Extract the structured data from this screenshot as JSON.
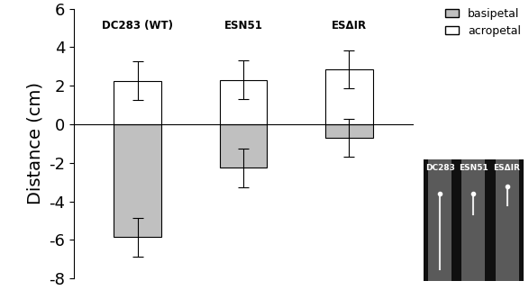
{
  "chart_data": {
    "type": "bar",
    "categories": [
      "DC283 (WT)",
      "ESN51",
      "ESΔIR"
    ],
    "series": [
      {
        "name": "basipetal",
        "color": "#c0c0c0",
        "values": [
          -5.85,
          -2.25,
          -0.7
        ],
        "error": [
          1.0,
          1.0,
          1.0
        ]
      },
      {
        "name": "acropetal",
        "color": "#ffffff",
        "values": [
          2.25,
          2.3,
          2.85
        ],
        "error": [
          1.0,
          1.0,
          1.0
        ]
      }
    ],
    "y_label": "Distance (cm)",
    "ylim": [
      -8,
      6
    ],
    "yticks": [
      -8,
      -6,
      -4,
      -2,
      0,
      2,
      4,
      6
    ],
    "legend": "upper right",
    "tick_labels": "y",
    "inset_labels": [
      "DC283",
      "ESN51",
      "ESΔIR"
    ]
  }
}
